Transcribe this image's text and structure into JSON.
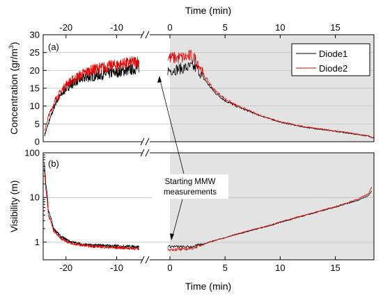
{
  "chart_data": [
    {
      "panel": "(a)",
      "type": "line",
      "xlabel_top": "Time (min)",
      "ylabel": "Concentration (gr/m³)",
      "ylim": [
        0,
        30
      ],
      "yticks": [
        0,
        5,
        10,
        15,
        20,
        25,
        30
      ],
      "xticks": [
        -20,
        -10,
        0,
        5,
        10,
        15
      ],
      "xlim_left_segment": [
        -24.5,
        -5
      ],
      "xlim_right_segment": [
        0,
        18.5
      ],
      "axis_break": true,
      "grid": "horizontal",
      "shaded_region": [
        0,
        18.5
      ],
      "legend": {
        "placement": "top-right",
        "entries": [
          "Diode1",
          "Diode2"
        ]
      },
      "series": [
        {
          "name": "Diode1",
          "color": "#000000",
          "x": [
            -24.2,
            -23.5,
            -22,
            -20,
            -18,
            -16,
            -14,
            -12,
            -10,
            -8,
            -6,
            0,
            1,
            2,
            2.5,
            3,
            4,
            5,
            6,
            8,
            10,
            12,
            14,
            16,
            18,
            18.5
          ],
          "y": [
            2,
            5,
            11,
            15,
            17,
            18,
            18.5,
            19,
            19.5,
            20,
            20.5,
            20,
            20.5,
            21,
            20.5,
            18,
            14,
            11.5,
            10,
            7.5,
            5.5,
            4.2,
            3.3,
            2.5,
            1.6,
            1
          ]
        },
        {
          "name": "Diode2",
          "color": "#e00000",
          "x": [
            -24.2,
            -23.5,
            -22,
            -20,
            -18,
            -16,
            -14,
            -12,
            -10,
            -8,
            -6,
            0,
            1,
            2,
            2.5,
            3,
            4,
            5,
            6,
            8,
            10,
            12,
            14,
            16,
            18,
            18.5
          ],
          "y": [
            3,
            7,
            12,
            16,
            18,
            19.5,
            20.5,
            21,
            21.5,
            22,
            22.5,
            23.5,
            23.5,
            24,
            22.5,
            19,
            14.5,
            12,
            10.2,
            7.6,
            5.6,
            4.3,
            3.4,
            2.6,
            1.6,
            1
          ]
        }
      ]
    },
    {
      "panel": "(b)",
      "type": "line",
      "xlabel": "Time (min)",
      "ylabel": "Visibility (m)",
      "yscale": "log",
      "ylim": [
        0.4,
        100
      ],
      "yticks": [
        1,
        10,
        100
      ],
      "xticks": [
        -20,
        -10,
        0,
        5,
        10,
        15
      ],
      "xlim_left_segment": [
        -24.5,
        -5
      ],
      "xlim_right_segment": [
        0,
        18.5
      ],
      "axis_break": true,
      "grid": "horizontal",
      "shaded_region": [
        0,
        18.5
      ],
      "annotation": {
        "text_lines": [
          "Starting MMW",
          "measurements"
        ],
        "points_to_x": 0.1
      },
      "series": [
        {
          "name": "Diode1",
          "color": "#000000",
          "x": [
            -24.3,
            -24,
            -23.5,
            -22.5,
            -21,
            -19,
            -17,
            -15,
            -13,
            -11,
            -9,
            -7,
            -5.5,
            0,
            1,
            2,
            3,
            5,
            7,
            9,
            11,
            13,
            15,
            16,
            17,
            18,
            18.3
          ],
          "y": [
            60,
            20,
            5,
            2,
            1.3,
            1.0,
            0.9,
            0.85,
            0.85,
            0.82,
            0.8,
            0.8,
            0.78,
            0.8,
            0.78,
            0.78,
            0.9,
            1.25,
            1.7,
            2.3,
            3.2,
            4.4,
            6,
            7.2,
            8.5,
            11,
            14
          ]
        },
        {
          "name": "Diode2",
          "color": "#e00000",
          "x": [
            -24.3,
            -24,
            -23.5,
            -22.5,
            -21,
            -19,
            -17,
            -15,
            -13,
            -11,
            -9,
            -7,
            -5.5,
            0,
            1,
            2,
            3,
            5,
            7,
            9,
            11,
            13,
            15,
            16,
            17,
            18,
            18.3
          ],
          "y": [
            45,
            15,
            4,
            1.8,
            1.2,
            0.92,
            0.85,
            0.8,
            0.78,
            0.75,
            0.74,
            0.72,
            0.7,
            0.68,
            0.68,
            0.72,
            0.88,
            1.25,
            1.75,
            2.35,
            3.3,
            4.5,
            6.2,
            7.5,
            9,
            12,
            17
          ]
        }
      ]
    }
  ]
}
